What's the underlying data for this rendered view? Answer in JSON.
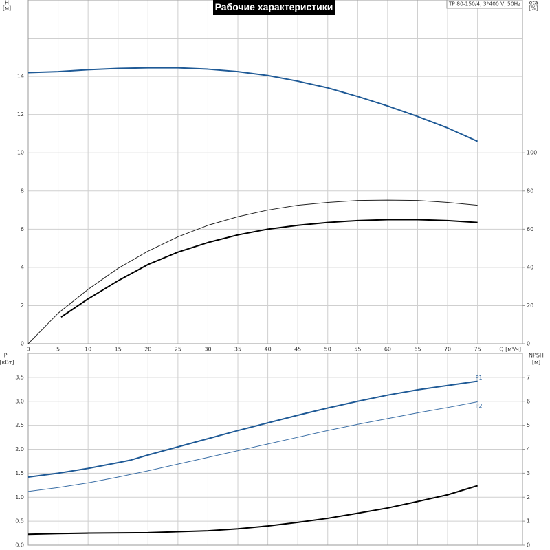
{
  "chart_data": [
    {
      "type": "line",
      "title": "Рабочие характеристики",
      "annotation": "TP 80-150/4, 3*400 V, 50Hz",
      "ylabel": "H",
      "yunit": "[м]",
      "y2label": "eta",
      "y2unit": "[%]",
      "xlabel": "Q [м³/ч]",
      "xlim": [
        0,
        82.5
      ],
      "xticks": [
        0,
        5,
        10,
        15,
        20,
        25,
        30,
        35,
        40,
        45,
        50,
        55,
        60,
        65,
        70,
        75
      ],
      "xtick_labels": true,
      "ylim": [
        0,
        18
      ],
      "yticks": [
        0,
        2,
        4,
        6,
        8,
        10,
        12,
        14
      ],
      "ygrid": [
        16
      ],
      "y2lim": [
        0,
        180
      ],
      "y2ticks": [
        0,
        20,
        40,
        60,
        80,
        100
      ],
      "grid": true,
      "series": [
        {
          "color": "#1f5a96",
          "style": "thick",
          "axis": "y",
          "x": [
            0,
            5,
            10,
            15,
            20,
            25,
            30,
            35,
            40,
            45,
            50,
            55,
            60,
            65,
            70,
            75
          ],
          "values": [
            14.2,
            14.25,
            14.35,
            14.42,
            14.45,
            14.45,
            14.38,
            14.25,
            14.05,
            13.75,
            13.4,
            12.95,
            12.45,
            11.9,
            11.3,
            10.6
          ]
        },
        {
          "color": "#222222",
          "style": "thin",
          "axis": "y2",
          "x": [
            0,
            5,
            10,
            15,
            20,
            25,
            30,
            35,
            40,
            45,
            50,
            55,
            60,
            65,
            70,
            75
          ],
          "values": [
            0,
            16,
            28.5,
            39.5,
            48.5,
            56,
            62,
            66.5,
            70,
            72.5,
            74,
            75,
            75.2,
            75,
            74,
            72.5
          ]
        },
        {
          "color": "#000000",
          "style": "thick",
          "axis": "y2",
          "x": [
            5.5,
            10,
            15,
            20,
            25,
            30,
            35,
            40,
            45,
            50,
            55,
            60,
            65,
            70,
            75
          ],
          "values": [
            14,
            23.5,
            33,
            41.5,
            48,
            53,
            57,
            60,
            62,
            63.5,
            64.5,
            65,
            65,
            64.5,
            63.5
          ]
        }
      ]
    },
    {
      "type": "line",
      "ylabel": "P",
      "yunit": "[кВт]",
      "y2label": "NPSH",
      "y2unit": "[м]",
      "xlim": [
        0,
        82.5
      ],
      "xticks": [
        0,
        5,
        10,
        15,
        20,
        25,
        30,
        35,
        40,
        45,
        50,
        55,
        60,
        65,
        70,
        75
      ],
      "xtick_labels": false,
      "ylim": [
        0,
        4
      ],
      "yticks": [
        {
          "value": 0,
          "label": "0.0"
        },
        {
          "value": 0.5,
          "label": "0.5"
        },
        {
          "value": 1,
          "label": "1.0"
        },
        {
          "value": 1.5,
          "label": "1.5"
        },
        {
          "value": 2,
          "label": "2.0"
        },
        {
          "value": 2.5,
          "label": "2.5"
        },
        {
          "value": 3,
          "label": "3.0"
        },
        {
          "value": 3.5,
          "label": "3.5"
        }
      ],
      "ygrid": [
        4
      ],
      "y2lim": [
        0,
        8
      ],
      "y2ticks": [
        0,
        1,
        2,
        3,
        4,
        5,
        6,
        7
      ],
      "grid": true,
      "series": [
        {
          "name": "P1",
          "color": "#1f5a96",
          "style": "thick",
          "axis": "y",
          "x": [
            0,
            5,
            10,
            15,
            17,
            20,
            25,
            30,
            35,
            40,
            45,
            50,
            55,
            60,
            65,
            70,
            75
          ],
          "values": [
            1.42,
            1.5,
            1.6,
            1.72,
            1.77,
            1.88,
            2.05,
            2.22,
            2.39,
            2.55,
            2.71,
            2.86,
            3.0,
            3.13,
            3.24,
            3.33,
            3.42
          ]
        },
        {
          "name": "P2",
          "color": "#3a6ea5",
          "style": "thin",
          "axis": "y",
          "x": [
            0,
            5,
            10,
            15,
            20,
            25,
            30,
            35,
            40,
            45,
            50,
            55,
            60,
            65,
            70,
            75
          ],
          "values": [
            1.12,
            1.2,
            1.3,
            1.42,
            1.55,
            1.69,
            1.83,
            1.97,
            2.11,
            2.25,
            2.39,
            2.52,
            2.64,
            2.76,
            2.87,
            2.99
          ]
        },
        {
          "color": "#000000",
          "style": "thick",
          "axis": "y2",
          "x": [
            0,
            5,
            10,
            20,
            30,
            35,
            40,
            45,
            50,
            55,
            60,
            65,
            70,
            75
          ],
          "values": [
            0.45,
            0.48,
            0.5,
            0.52,
            0.6,
            0.68,
            0.8,
            0.95,
            1.12,
            1.33,
            1.55,
            1.82,
            2.1,
            2.48
          ]
        }
      ]
    }
  ]
}
